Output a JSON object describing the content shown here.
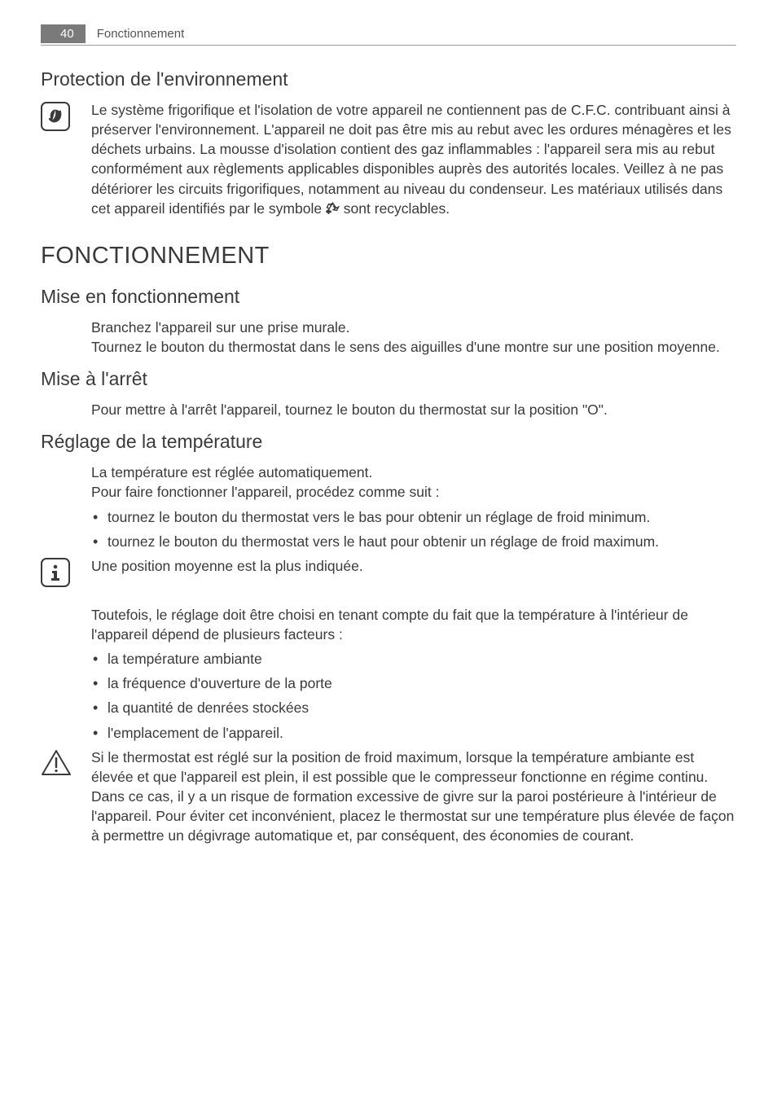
{
  "header": {
    "page_number": "40",
    "section": "Fonctionnement"
  },
  "env": {
    "heading": "Protection de l'environnement",
    "body_pre": "Le système frigorifique et l'isolation de votre appareil ne contiennent pas de C.F.C. contribuant ainsi à préserver l'environnement. L'appareil ne doit pas être mis au rebut avec les ordures ménagères et les déchets urbains. La mousse d'isolation contient des gaz inflammables : l'appareil sera mis au rebut conformément aux règlements applicables disponibles auprès des autorités locales. Veillez à ne pas détériorer les circuits frigorifiques, notamment au niveau du condenseur. Les matériaux utilisés dans cet appareil identifiés par le symbole ",
    "body_post": " sont recyclables."
  },
  "main_heading": "FONCTIONNEMENT",
  "start": {
    "heading": "Mise en fonctionnement",
    "p1": "Branchez l'appareil sur une prise murale.",
    "p2": "Tournez le bouton du thermostat dans le sens des aiguilles d'une montre sur une position moyenne."
  },
  "stop": {
    "heading": "Mise à l'arrêt",
    "p1": "Pour mettre à l'arrêt l'appareil, tournez le bouton du thermostat sur la position \"O\"."
  },
  "temp": {
    "heading": "Réglage de la température",
    "p1": "La température est réglée automatiquement.",
    "p2": "Pour faire fonctionner l'appareil, procédez comme suit :",
    "bullets_a": [
      "tournez le bouton du thermostat vers le bas pour obtenir un réglage de froid minimum.",
      "tournez le bouton du thermostat vers le haut pour obtenir un réglage de froid maximum."
    ],
    "info": "Une position moyenne est la plus indiquée.",
    "p3": "Toutefois, le réglage doit être choisi en tenant compte du fait que la température à l'intérieur de l'appareil dépend de plusieurs facteurs :",
    "bullets_b": [
      "la température ambiante",
      "la fréquence d'ouverture de la porte",
      "la quantité de denrées stockées",
      "l'emplacement de l'appareil."
    ],
    "warning": "Si le thermostat est réglé sur la position de froid maximum, lorsque la température ambiante est élevée et que l'appareil est plein, il est possible que le compresseur fonctionne en régime continu. Dans ce cas, il y a un risque de formation excessive de givre sur la paroi postérieure à l'intérieur de l'appareil. Pour éviter cet inconvénient, placez le thermostat sur une température plus élevée de façon à permettre un dégivrage automatique et, par conséquent, des économies de courant."
  }
}
